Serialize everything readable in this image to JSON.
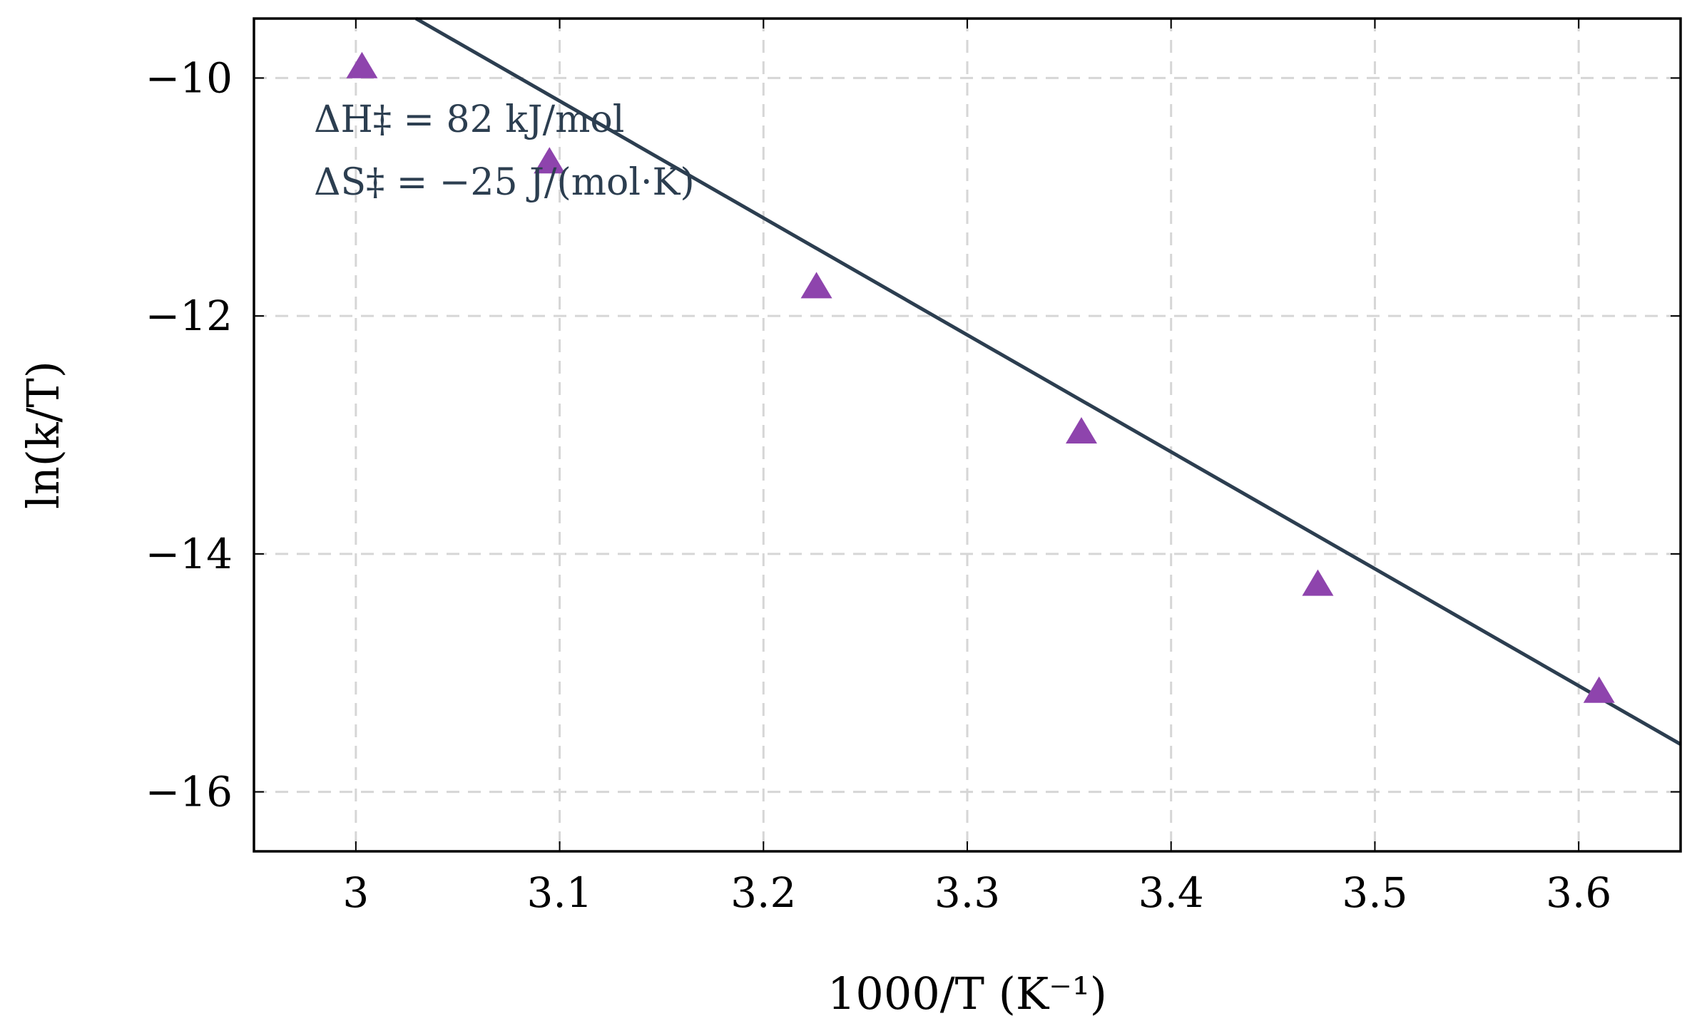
{
  "chart_data": {
    "type": "scatter",
    "xlabel": "1000/T (K⁻¹)",
    "ylabel": "ln(k/T)",
    "xlim": [
      2.95,
      3.65
    ],
    "ylim": [
      -16.5,
      -9.5
    ],
    "grid": true,
    "x_ticks": [
      3.0,
      3.1,
      3.2,
      3.3,
      3.4,
      3.5,
      3.6
    ],
    "x_tick_labels": [
      "3",
      "3.1",
      "3.2",
      "3.3",
      "3.4",
      "3.5",
      "3.6"
    ],
    "y_ticks": [
      -10,
      -12,
      -14,
      -16
    ],
    "y_tick_labels": [
      "−10",
      "−12",
      "−14",
      "−16"
    ],
    "series": [
      {
        "kind": "scatter",
        "marker": "triangle",
        "color": "#8e44ad",
        "points": [
          {
            "x": 3.003,
            "y": -9.9
          },
          {
            "x": 3.095,
            "y": -10.7
          },
          {
            "x": 3.226,
            "y": -11.75
          },
          {
            "x": 3.356,
            "y": -12.97
          },
          {
            "x": 3.472,
            "y": -14.25
          },
          {
            "x": 3.61,
            "y": -15.15
          }
        ]
      },
      {
        "kind": "line",
        "color": "#2c3e50",
        "points": [
          {
            "x": 3.0295,
            "y": -9.5
          },
          {
            "x": 3.65,
            "y": -15.6
          }
        ]
      }
    ],
    "annotations": [
      "ΔH‡ = 82 kJ/mol",
      "ΔS‡ = −25 J/(mol·K)"
    ]
  }
}
